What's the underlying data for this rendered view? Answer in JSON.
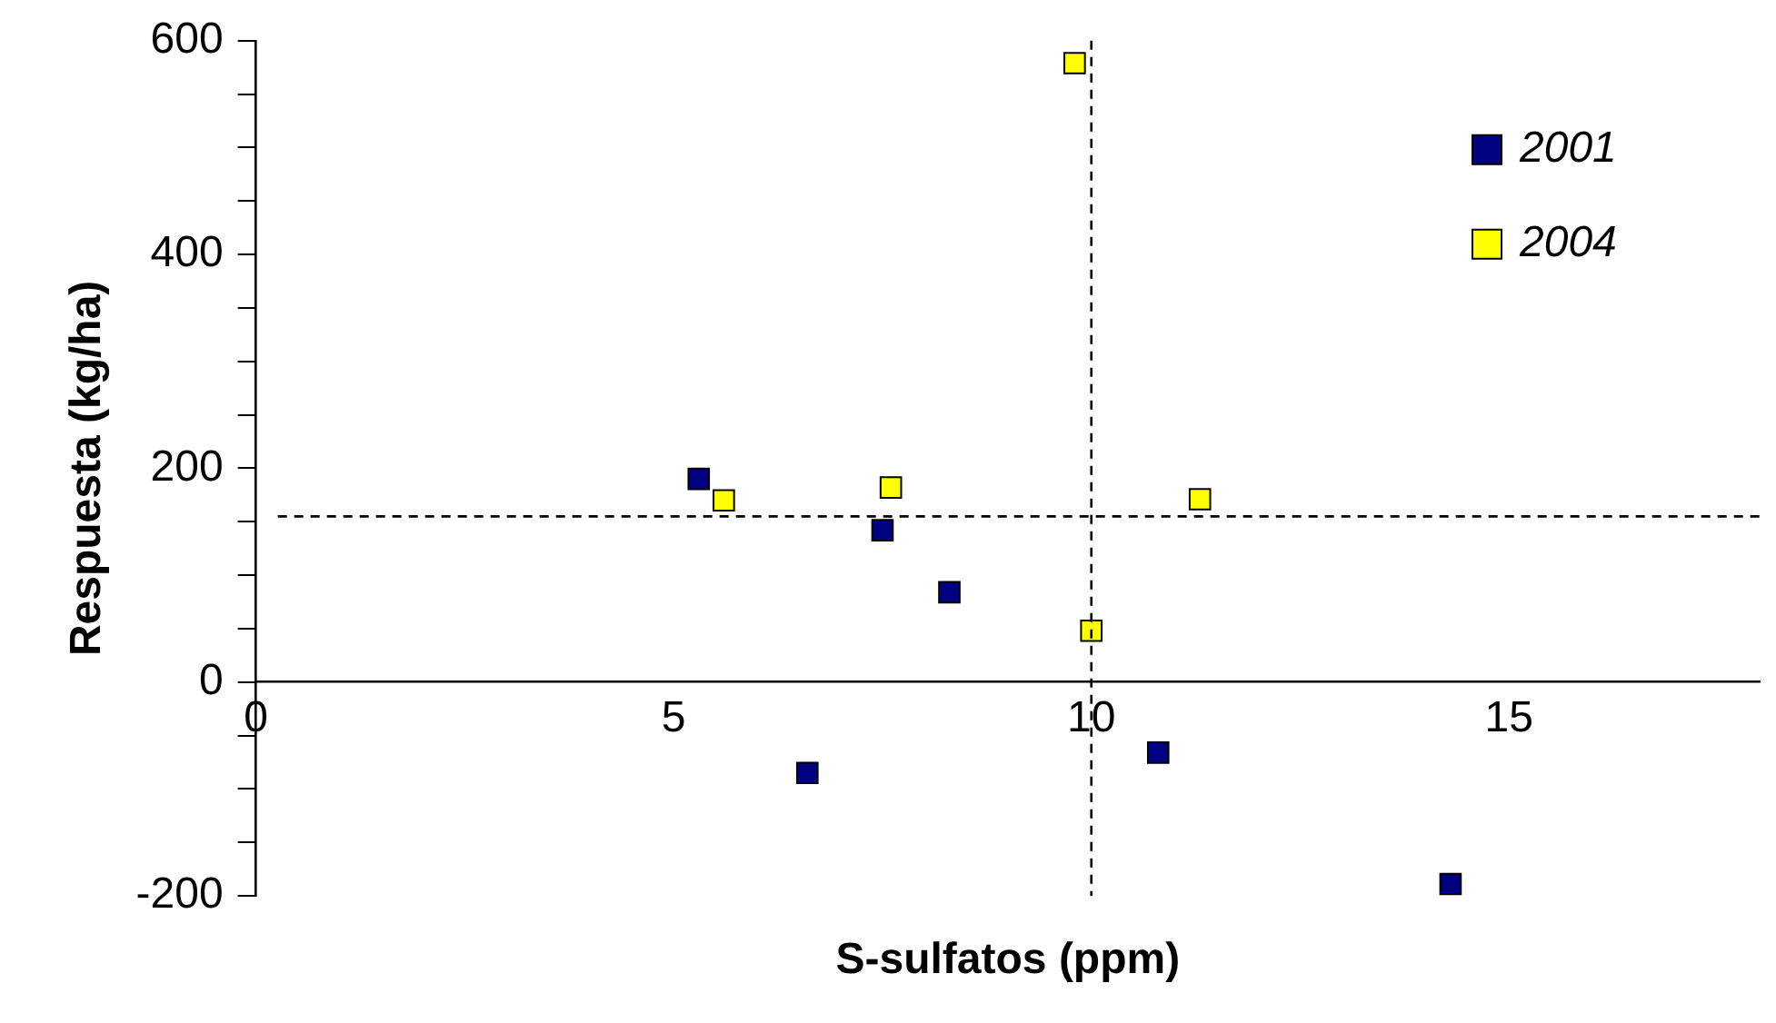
{
  "chart_data": {
    "type": "scatter",
    "xlabel": "S-sulfatos (ppm)",
    "ylabel": "Respuesta (kg/ha)",
    "xlim": [
      0,
      18
    ],
    "xticks": [
      0,
      5,
      10,
      15
    ],
    "ylim": [
      -200,
      600
    ],
    "yticks": [
      -200,
      {
        "value": -150,
        "label": null
      },
      {
        "value": -100,
        "label": null
      },
      {
        "value": -50,
        "label": null
      },
      0,
      {
        "value": 50,
        "label": null
      },
      {
        "value": 100,
        "label": null
      },
      {
        "value": 150,
        "label": null
      },
      200,
      {
        "value": 250,
        "label": null
      },
      {
        "value": 300,
        "label": null
      },
      {
        "value": 350,
        "label": null
      },
      400,
      {
        "value": 450,
        "label": null
      },
      {
        "value": 500,
        "label": null
      },
      {
        "value": 550,
        "label": null
      },
      600
    ],
    "grid": false,
    "legend": "top right",
    "marker": "square",
    "series": [
      {
        "name": "2001",
        "color": "#000080",
        "x": [
          5.3,
          6.6,
          7.5,
          8.3,
          10.8,
          14.3
        ],
        "values": [
          190,
          -85,
          142,
          84,
          -66,
          -189
        ]
      },
      {
        "name": "2004",
        "color": "#ffff00",
        "x": [
          5.6,
          7.6,
          9.8,
          10.0,
          11.3
        ],
        "values": [
          170,
          182,
          579,
          48,
          171
        ]
      }
    ],
    "ref_lines": [
      {
        "axis": "x",
        "value": 10,
        "line_style": "dashed",
        "color": "#000000"
      },
      {
        "axis": "y",
        "value": 155,
        "line_style": "dashed",
        "color": "#000000"
      }
    ]
  }
}
